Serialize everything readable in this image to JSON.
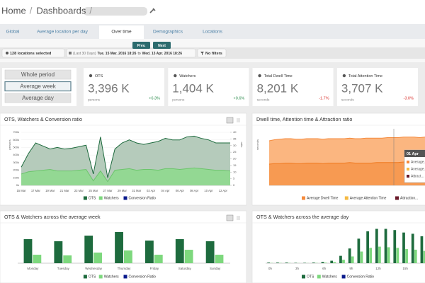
{
  "header": {
    "breadcrumb": [
      "Home",
      "Dashboards"
    ],
    "separator": "/"
  },
  "tabs": [
    "Global",
    "Average location per day",
    "Over time",
    "Demographics",
    "Locations"
  ],
  "active_tab": 2,
  "nav": [
    "Prev.",
    "Next"
  ],
  "filters": {
    "locations": "128 locations selected",
    "period_prefix": "(Last 30 Days)",
    "period_start": "Tue. 15 Mar. 2016 18:26",
    "period_sep": "to",
    "period_end": "Wed. 13 Apr. 2016 18:26",
    "other": "No filters"
  },
  "period_buttons": [
    "Whole period",
    "Average week",
    "Average day"
  ],
  "active_period": 1,
  "kpis": [
    {
      "label": "OTS",
      "value": "3,396 K",
      "unit": "persons",
      "change": "+6.3%",
      "color": "#2a8a4a"
    },
    {
      "label": "Watchers",
      "value": "1,404 K",
      "unit": "persons",
      "change": "+0.6%",
      "color": "#2a8a4a"
    },
    {
      "label": "Total Dwell Time",
      "value": "8,201 K",
      "unit": "seconds",
      "change": "-1.7%",
      "color": "#d9302c"
    },
    {
      "label": "Total Attention Time",
      "value": "3,707 K",
      "unit": "seconds",
      "change": "-3.0%",
      "color": "#d9302c"
    }
  ],
  "panels": [
    {
      "title": "OTS, Watchers & Conversion ratio",
      "chart": {
        "type": "area",
        "ylabel": "persons",
        "y2label": "ratio",
        "categories": [
          "15 Mar",
          null,
          "17 Mar",
          null,
          "19 Mar",
          null,
          "21 Mar",
          null,
          "23 Mar",
          null,
          "25 Mar",
          null,
          "27 Mar",
          null,
          "29 Mar",
          null,
          "31 Mar",
          null,
          "02 Apr",
          null,
          "04 Apr",
          null,
          "06 Apr",
          null,
          "08 Apr",
          null,
          "10 Apr",
          null,
          "12 Apr",
          null
        ],
        "series": [
          {
            "name": "OTS",
            "color": "#1e6b3e",
            "fill": "#b5cbbb",
            "values": [
              240,
              420,
              560,
              520,
              480,
              500,
              480,
              490,
              510,
              530,
              150,
              640,
              100,
              480,
              560,
              600,
              560,
              540,
              560,
              580,
              620,
              600,
              600,
              640,
              650,
              620,
              600,
              560,
              560,
              560
            ]
          },
          {
            "name": "Watchers",
            "color": "#6cc46c",
            "fill": "#93d893",
            "values": [
              150,
              180,
              190,
              200,
              210,
              190,
              190,
              190,
              200,
              210,
              60,
              190,
              50,
              200,
              210,
              220,
              200,
              210,
              210,
              200,
              220,
              220,
              210,
              220,
              230,
              220,
              210,
              200,
              200,
              190
            ]
          }
        ],
        "legend": [
          {
            "name": "OTS",
            "color": "#1e6b3e"
          },
          {
            "name": "Watchers",
            "color": "#7dd87d"
          },
          {
            "name": "Conversion Ratio",
            "color": "#0a1a8c"
          }
        ],
        "ylim": [
          0,
          700
        ],
        "yticks": [
          {
            "value": 0,
            "label": "0k"
          },
          {
            "value": 100,
            "label": "100k"
          },
          {
            "value": 200,
            "label": "200k"
          },
          {
            "value": 300,
            "label": "300k"
          },
          {
            "value": 400,
            "label": "400k"
          },
          {
            "value": 500,
            "label": "500k"
          },
          {
            "value": 600,
            "label": "600k"
          },
          {
            "value": 700,
            "label": "700k"
          }
        ],
        "y2lim": [
          0,
          40
        ],
        "y2ticks": [
          0,
          5,
          10,
          15,
          20,
          25,
          30,
          35,
          40
        ],
        "grid": true
      }
    },
    {
      "title": "Dwell time, Attention time & Attraction ratio",
      "chart": {
        "type": "area",
        "ylabel": "seconds",
        "series": [
          {
            "name": "Average Dwell Time",
            "color": "#f58a3c",
            "fill": "#fbb680",
            "values": [
              84,
              86,
              87,
              88,
              88,
              87,
              87,
              88,
              88,
              88,
              87,
              88,
              88,
              88,
              88,
              89,
              88,
              88,
              89,
              89,
              89,
              89,
              90,
              90,
              90,
              91,
              91,
              91,
              90,
              91
            ]
          },
          {
            "name": "Average Attention Time",
            "color": "#f07a20",
            "fill": "#f79a52",
            "values": [
              40,
              41,
              41,
              42,
              42,
              41,
              41,
              42,
              42,
              42,
              41,
              42,
              42,
              42,
              42,
              43,
              42,
              42,
              42,
              42,
              43,
              43,
              43,
              43,
              43,
              44,
              44,
              44,
              43,
              44
            ]
          }
        ],
        "legend": [
          {
            "name": "Average Dwell Time",
            "color": "#f58a3c"
          },
          {
            "name": "Average Attention Time",
            "color": "#f5b942"
          },
          {
            "name": "Attraction...",
            "color": "#6a1a2a"
          }
        ],
        "ylim": [
          0,
          100
        ],
        "tooltip": {
          "title": "01 Apr",
          "rows": [
            {
              "label": "Average...",
              "color": "#f58a3c"
            },
            {
              "label": "Average...",
              "color": "#f5b942"
            },
            {
              "label": "Attract...",
              "color": "#6a1a2a"
            }
          ]
        }
      }
    },
    {
      "title": "OTS & Watchers across the average week",
      "chart": {
        "type": "bar",
        "categories": [
          "Monday",
          "Tuesday",
          "Wednesday",
          "Thursday",
          "Friday",
          "Saturday",
          "Sunday"
        ],
        "series": [
          {
            "name": "OTS",
            "color": "#1e6b3e",
            "values": [
              355,
              324,
              407,
              460,
              334,
              355,
              324
            ]
          },
          {
            "name": "Watchers",
            "color": "#7dd87d",
            "values": [
              125,
              115,
              157,
              188,
              125,
              198,
              125
            ]
          }
        ],
        "legend": [
          {
            "name": "OTS",
            "color": "#1e6b3e"
          },
          {
            "name": "Watchers",
            "color": "#7dd87d"
          },
          {
            "name": "Conversion Ratio",
            "color": "#0a1a8c"
          }
        ],
        "ylim": [
          0,
          700
        ]
      }
    },
    {
      "title": "OTS & Watchers across the average day",
      "chart": {
        "type": "bar",
        "categories": [
          "0h",
          null,
          null,
          "3h",
          null,
          null,
          "6h",
          null,
          null,
          "9h",
          null,
          null,
          "12h",
          null,
          null,
          "15h",
          null,
          null
        ],
        "series": [
          {
            "name": "OTS",
            "color": "#1e6b3e",
            "values": [
              5,
              5,
              5,
              3,
              3,
              5,
              10,
              20,
              60,
              120,
              200,
              260,
              280,
              280,
              270,
              250,
              240,
              220
            ]
          },
          {
            "name": "Watchers",
            "color": "#7dd87d",
            "values": [
              2,
              2,
              2,
              1,
              1,
              2,
              4,
              9,
              28,
              55,
              95,
              125,
              135,
              130,
              125,
              115,
              110,
              100
            ]
          }
        ],
        "legend": [
          {
            "name": "OTS",
            "color": "#1e6b3e"
          },
          {
            "name": "Watchers",
            "color": "#7dd87d"
          },
          {
            "name": "Conversion Ratio",
            "color": "#0a1a8c"
          }
        ],
        "ylim": [
          0,
          300
        ]
      }
    }
  ]
}
